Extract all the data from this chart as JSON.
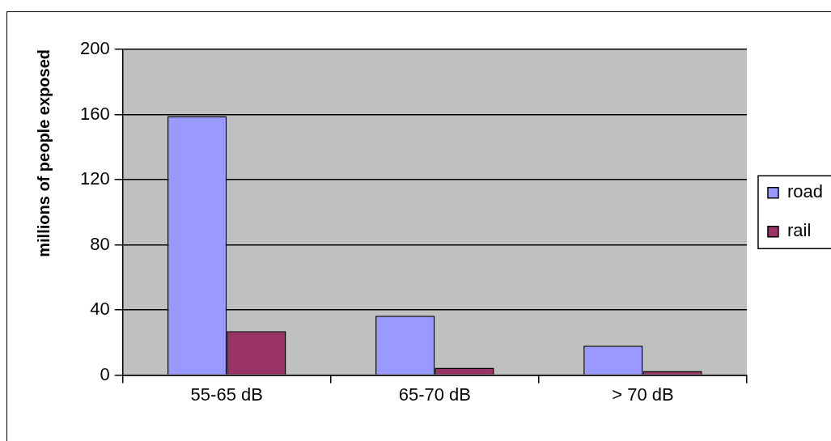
{
  "chart_data": {
    "type": "bar",
    "ylabel": "millions of people exposed",
    "categories": [
      "55-65 dB",
      "65-70 dB",
      "> 70 dB"
    ],
    "series": [
      {
        "name": "road",
        "color": "#9999ff",
        "values": [
          159,
          36.5,
          18
        ]
      },
      {
        "name": "rail",
        "color": "#993366",
        "values": [
          27,
          4.5,
          2.5
        ]
      }
    ],
    "ylim": [
      0,
      200
    ],
    "yticks": [
      0,
      40,
      80,
      120,
      160,
      200
    ],
    "grid": "y",
    "legend": "right"
  }
}
